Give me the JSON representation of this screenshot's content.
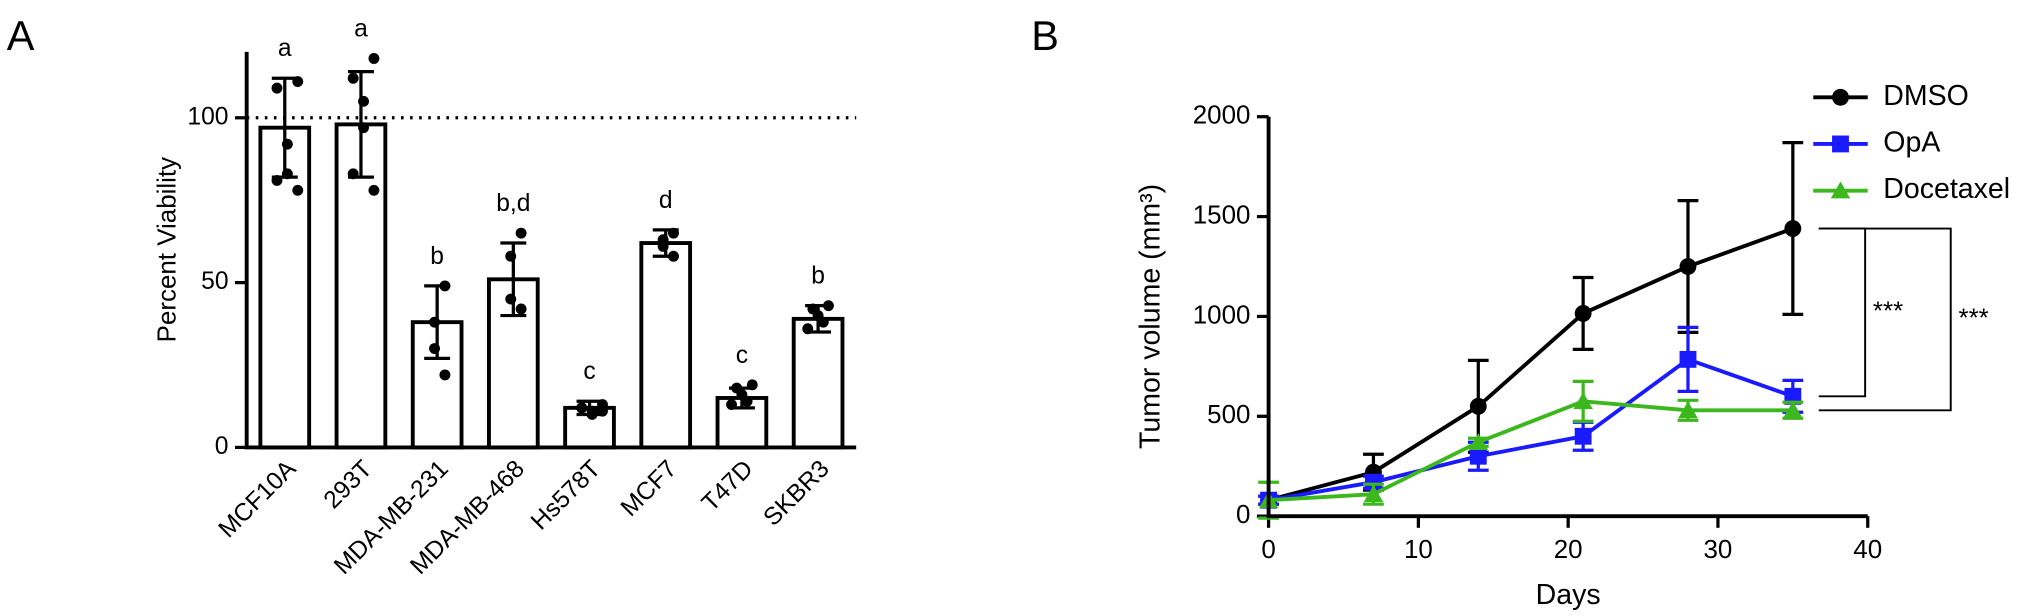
{
  "chart_data": [
    {
      "type": "bar",
      "panel_label": "A",
      "y_label": "Percent Viability",
      "categories": [
        "MCF10A",
        "293T",
        "MDA-MB-231",
        "MDA-MB-468",
        "Hs578T",
        "MCF7",
        "T47D",
        "SKBR3"
      ],
      "values": [
        97,
        98,
        38,
        51,
        12,
        62,
        15,
        39
      ],
      "errors": [
        15,
        16,
        11,
        11,
        2,
        4,
        3,
        4
      ],
      "points": [
        [
          111,
          109,
          92,
          83,
          81,
          78
        ],
        [
          118,
          112,
          105,
          97,
          83,
          78
        ],
        [
          49,
          38,
          30,
          22
        ],
        [
          65,
          58,
          45,
          42
        ],
        [
          13,
          12,
          11,
          10,
          12,
          11
        ],
        [
          65,
          63,
          61,
          58
        ],
        [
          19,
          18,
          16,
          14,
          13
        ],
        [
          43,
          42,
          40,
          38,
          36
        ]
      ],
      "significance": [
        "a",
        "a",
        "b",
        "b,d",
        "c",
        "d",
        "c",
        "b"
      ],
      "color": "#ffffff",
      "edge_color": "#000000",
      "reference_line": 100,
      "ylim": [
        0,
        120
      ],
      "yticks": [
        0,
        50,
        100
      ]
    },
    {
      "type": "line",
      "panel_label": "B",
      "x_label": "Days",
      "y_label": "Tumor volume (mm³)",
      "x": [
        0,
        7,
        14,
        21,
        28,
        35
      ],
      "series": [
        {
          "name": "DMSO",
          "color": "#000000",
          "marker": "circle",
          "values": [
            80,
            220,
            550,
            1015,
            1250,
            1440
          ],
          "errors": [
            20,
            90,
            230,
            180,
            330,
            430
          ]
        },
        {
          "name": "OpA",
          "color": "#1a1aff",
          "marker": "square",
          "values": [
            80,
            170,
            300,
            400,
            785,
            600
          ],
          "errors": [
            20,
            30,
            70,
            70,
            160,
            80
          ]
        },
        {
          "name": "Docetaxel",
          "color": "#3cb81e",
          "marker": "triangle",
          "values": [
            80,
            110,
            370,
            575,
            530,
            530
          ],
          "errors": [
            90,
            50,
            20,
            100,
            50,
            40
          ]
        }
      ],
      "annotations": [
        "***",
        "***"
      ],
      "legend": "upper right",
      "xlim": [
        0,
        40
      ],
      "xticks": [
        0,
        10,
        20,
        30,
        40
      ],
      "ylim": [
        0,
        2000
      ],
      "yticks": [
        0,
        500,
        1000,
        1500,
        2000
      ]
    }
  ]
}
